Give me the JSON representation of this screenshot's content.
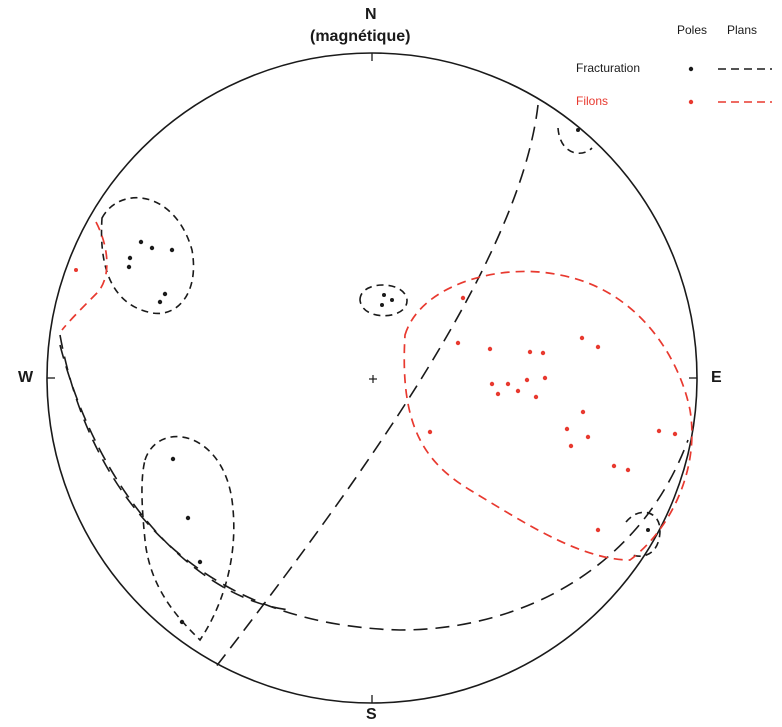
{
  "diagram": {
    "labels": {
      "north": "N",
      "north_note": "(magnétique)",
      "south": "S",
      "east": "E",
      "west": "W"
    },
    "legend": {
      "col_poles": "Poles",
      "col_plans": "Plans",
      "rows": [
        {
          "label": "Fracturation",
          "color": "#1a1a1a"
        },
        {
          "label": "Filons",
          "color": "#e8392f"
        }
      ]
    },
    "colors": {
      "fracturation": "#1a1a1a",
      "filons": "#e8392f",
      "outline": "#1a1a1a"
    }
  }
}
